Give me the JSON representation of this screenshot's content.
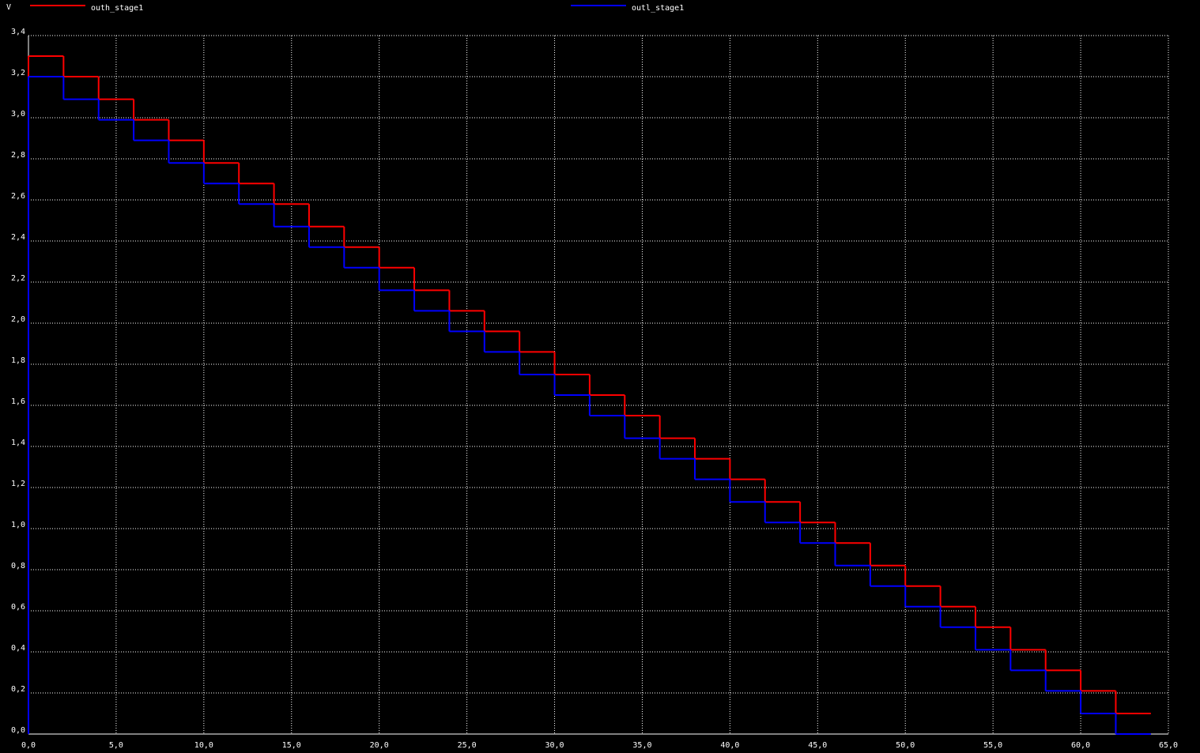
{
  "chart_data": {
    "type": "step",
    "ylabel": "V",
    "x": [
      0,
      2,
      4,
      6,
      8,
      10,
      12,
      14,
      16,
      18,
      20,
      22,
      24,
      26,
      28,
      30,
      32,
      34,
      36,
      38,
      40,
      42,
      44,
      46,
      48,
      50,
      52,
      54,
      56,
      58,
      60,
      62,
      64
    ],
    "series": [
      {
        "name": "outh_stage1",
        "color": "#ff0000",
        "values": [
          3.3,
          3.2,
          3.09,
          2.99,
          2.89,
          2.78,
          2.68,
          2.58,
          2.47,
          2.37,
          2.27,
          2.16,
          2.06,
          1.96,
          1.86,
          1.75,
          1.65,
          1.55,
          1.44,
          1.34,
          1.24,
          1.13,
          1.03,
          0.93,
          0.82,
          0.72,
          0.62,
          0.52,
          0.41,
          0.31,
          0.21,
          0.1,
          0.1
        ]
      },
      {
        "name": "outl_stage1",
        "color": "#0000ff",
        "values": [
          3.2,
          3.09,
          2.99,
          2.89,
          2.78,
          2.68,
          2.58,
          2.47,
          2.37,
          2.27,
          2.16,
          2.06,
          1.96,
          1.86,
          1.75,
          1.65,
          1.55,
          1.44,
          1.34,
          1.24,
          1.13,
          1.03,
          0.93,
          0.82,
          0.72,
          0.62,
          0.52,
          0.41,
          0.31,
          0.21,
          0.1,
          0,
          0
        ]
      }
    ],
    "xlim": [
      0,
      65
    ],
    "ylim": [
      0,
      3.4
    ],
    "xticks": [
      {
        "value": 0,
        "label": "0,0"
      },
      {
        "value": 5,
        "label": "5,0"
      },
      {
        "value": 10,
        "label": "10,0"
      },
      {
        "value": 15,
        "label": "15,0"
      },
      {
        "value": 20,
        "label": "20,0"
      },
      {
        "value": 25,
        "label": "25,0"
      },
      {
        "value": 30,
        "label": "30,0"
      },
      {
        "value": 35,
        "label": "35,0"
      },
      {
        "value": 40,
        "label": "40,0"
      },
      {
        "value": 45,
        "label": "45,0"
      },
      {
        "value": 50,
        "label": "50,0"
      },
      {
        "value": 55,
        "label": "55,0"
      },
      {
        "value": 60,
        "label": "60,0"
      },
      {
        "value": 65,
        "label": "65,0"
      }
    ],
    "yticks": [
      {
        "value": 0,
        "label": "0,0"
      },
      {
        "value": 0.2,
        "label": "0,2"
      },
      {
        "value": 0.4,
        "label": "0,4"
      },
      {
        "value": 0.6,
        "label": "0,6"
      },
      {
        "value": 0.8,
        "label": "0,8"
      },
      {
        "value": 1.0,
        "label": "1,0"
      },
      {
        "value": 1.2,
        "label": "1,2"
      },
      {
        "value": 1.4,
        "label": "1,4"
      },
      {
        "value": 1.6,
        "label": "1,6"
      },
      {
        "value": 1.8,
        "label": "1,8"
      },
      {
        "value": 2.0,
        "label": "2,0"
      },
      {
        "value": 2.2,
        "label": "2,2"
      },
      {
        "value": 2.4,
        "label": "2,4"
      },
      {
        "value": 2.6,
        "label": "2,6"
      },
      {
        "value": 2.8,
        "label": "2,8"
      },
      {
        "value": 3.0,
        "label": "3,0"
      },
      {
        "value": 3.2,
        "label": "3,2"
      },
      {
        "value": 3.4,
        "label": "3,4"
      }
    ],
    "grid": true
  }
}
